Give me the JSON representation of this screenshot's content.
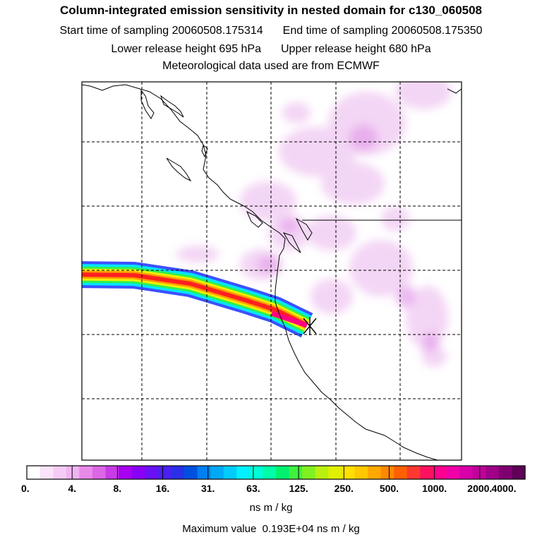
{
  "title": "Column-integrated emission sensitivity in nested domain for c130_060508",
  "start_label": "Start time of sampling",
  "start_value": "20060508.175314",
  "end_label": "End time of sampling",
  "end_value": "20060508.175350",
  "lower_label": "Lower release height",
  "lower_value": "695 hPa",
  "upper_label": "Upper release height",
  "upper_value": "680 hPa",
  "met_line": "Meteorological data used are from ECMWF",
  "colorbar": {
    "ticks": [
      "0.",
      "4.",
      "8.",
      "16.",
      "31.",
      "63.",
      "125.",
      "250.",
      "500.",
      "1000.",
      "2000.",
      "4000."
    ],
    "colors": [
      "#ffffff",
      "#fbe3fb",
      "#f6ccf6",
      "#f0b4f2",
      "#e88ae8",
      "#dd66e6",
      "#c93be8",
      "#a800f0",
      "#8a00f5",
      "#6a10f5",
      "#4a20f0",
      "#2a30e8",
      "#0050e0",
      "#0080f0",
      "#00a8f8",
      "#00ccfc",
      "#00f0ff",
      "#00ffd8",
      "#00ffa8",
      "#00f070",
      "#40f040",
      "#80f020",
      "#b8f010",
      "#e0f000",
      "#ffe000",
      "#ffc800",
      "#ffa800",
      "#ff8800",
      "#ff6000",
      "#ff3830",
      "#ff1060",
      "#ff0090",
      "#f000a8",
      "#d800a8",
      "#c0009a",
      "#a00088",
      "#800070",
      "#600058"
    ],
    "unit": "ns m / kg"
  },
  "max_label": "Maximum value",
  "max_value": "0.193E+04 ns m / kg",
  "release_marker": "release-point-star"
}
